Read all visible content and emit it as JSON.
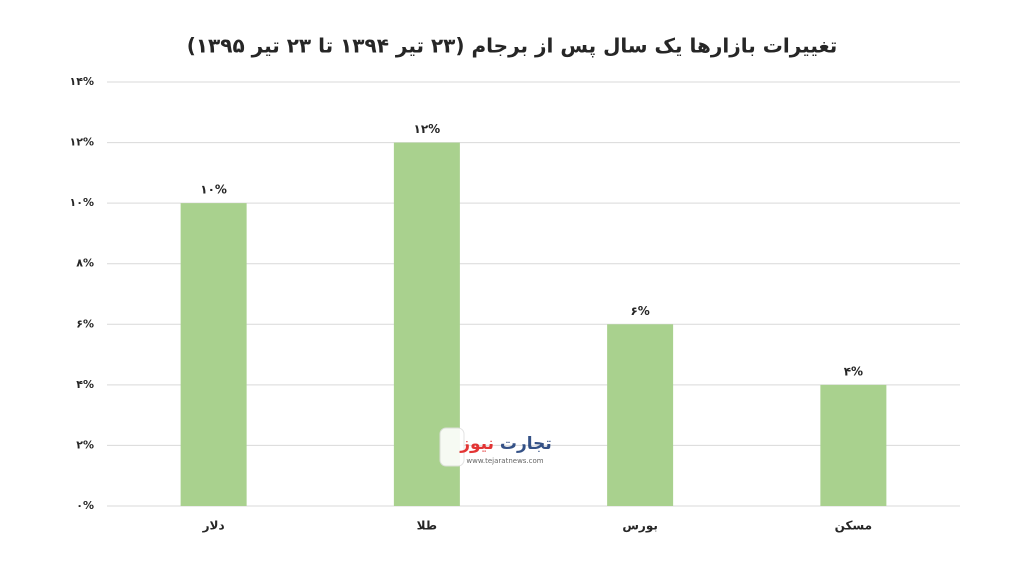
{
  "chart_data": {
    "type": "bar",
    "title": "تغییرات بازارها یک سال پس از برجام (۲۳ تیر ۱۳۹۴ تا ۲۳ تیر ۱۳۹۵)",
    "categories": [
      "دلار",
      "طلا",
      "بورس",
      "مسکن"
    ],
    "values": [
      10,
      12,
      6,
      4
    ],
    "value_labels": [
      "۱۰%",
      "۱۲%",
      "۶%",
      "۴%"
    ],
    "color": "#a9d18e",
    "ylim": [
      0,
      14
    ],
    "yticks": [
      {
        "value": 0,
        "label": "۰%"
      },
      {
        "value": 2,
        "label": "۲%"
      },
      {
        "value": 4,
        "label": "۴%"
      },
      {
        "value": 6,
        "label": "۶%"
      },
      {
        "value": 8,
        "label": "۸%"
      },
      {
        "value": 10,
        "label": "۱۰%"
      },
      {
        "value": 12,
        "label": "۱۲%"
      },
      {
        "value": 14,
        "label": "۱۴%"
      }
    ],
    "grid": true,
    "watermark": {
      "brand_a": "تجارت",
      "brand_b": "نیوز",
      "url": "www.tejaratnews.com"
    }
  }
}
